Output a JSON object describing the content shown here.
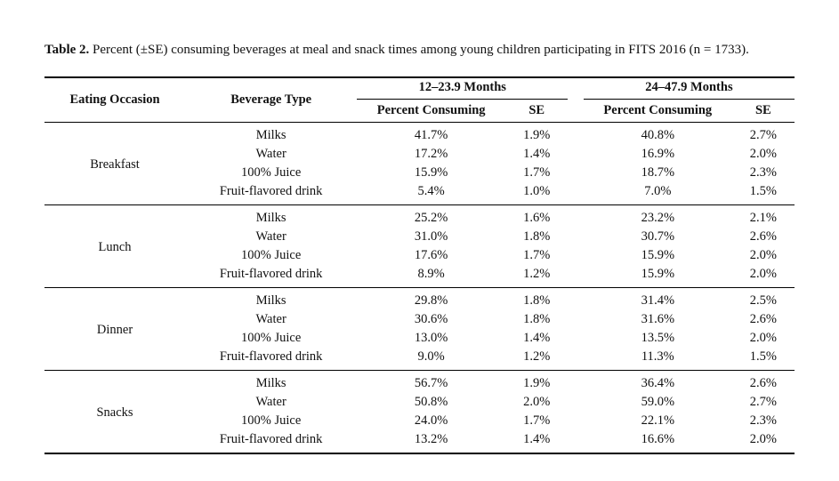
{
  "caption": {
    "label": "Table 2.",
    "text": " Percent (±SE) consuming beverages at meal and snack times among young children participating in FITS 2016 (n = 1733)."
  },
  "colors": {
    "text": "#111111",
    "background": "#ffffff",
    "rule": "#000000"
  },
  "typography": {
    "body_family": "Palatino Linotype, Book Antiqua, Palatino, Georgia, serif",
    "body_size_pt": 11,
    "table_size_pt": 10.5
  },
  "headers": {
    "eating_occasion": "Eating Occasion",
    "beverage_type": "Beverage Type",
    "age_groups": [
      "12–23.9 Months",
      "24–47.9 Months"
    ],
    "sub_percent": "Percent Consuming",
    "sub_se": "SE"
  },
  "column_widths_pct": [
    18,
    22,
    19,
    8,
    2,
    19,
    8
  ],
  "groups": [
    {
      "occasion": "Breakfast",
      "rows": [
        {
          "beverage": "Milks",
          "g1_pct": "41.7%",
          "g1_se": "1.9%",
          "g2_pct": "40.8%",
          "g2_se": "2.7%"
        },
        {
          "beverage": "Water",
          "g1_pct": "17.2%",
          "g1_se": "1.4%",
          "g2_pct": "16.9%",
          "g2_se": "2.0%"
        },
        {
          "beverage": "100% Juice",
          "g1_pct": "15.9%",
          "g1_se": "1.7%",
          "g2_pct": "18.7%",
          "g2_se": "2.3%"
        },
        {
          "beverage": "Fruit-flavored drink",
          "g1_pct": "5.4%",
          "g1_se": "1.0%",
          "g2_pct": "7.0%",
          "g2_se": "1.5%"
        }
      ]
    },
    {
      "occasion": "Lunch",
      "rows": [
        {
          "beverage": "Milks",
          "g1_pct": "25.2%",
          "g1_se": "1.6%",
          "g2_pct": "23.2%",
          "g2_se": "2.1%"
        },
        {
          "beverage": "Water",
          "g1_pct": "31.0%",
          "g1_se": "1.8%",
          "g2_pct": "30.7%",
          "g2_se": "2.6%"
        },
        {
          "beverage": "100% Juice",
          "g1_pct": "17.6%",
          "g1_se": "1.7%",
          "g2_pct": "15.9%",
          "g2_se": "2.0%"
        },
        {
          "beverage": "Fruit-flavored drink",
          "g1_pct": "8.9%",
          "g1_se": "1.2%",
          "g2_pct": "15.9%",
          "g2_se": "2.0%"
        }
      ]
    },
    {
      "occasion": "Dinner",
      "rows": [
        {
          "beverage": "Milks",
          "g1_pct": "29.8%",
          "g1_se": "1.8%",
          "g2_pct": "31.4%",
          "g2_se": "2.5%"
        },
        {
          "beverage": "Water",
          "g1_pct": "30.6%",
          "g1_se": "1.8%",
          "g2_pct": "31.6%",
          "g2_se": "2.6%"
        },
        {
          "beverage": "100% Juice",
          "g1_pct": "13.0%",
          "g1_se": "1.4%",
          "g2_pct": "13.5%",
          "g2_se": "2.0%"
        },
        {
          "beverage": "Fruit-flavored drink",
          "g1_pct": "9.0%",
          "g1_se": "1.2%",
          "g2_pct": "11.3%",
          "g2_se": "1.5%"
        }
      ]
    },
    {
      "occasion": "Snacks",
      "rows": [
        {
          "beverage": "Milks",
          "g1_pct": "56.7%",
          "g1_se": "1.9%",
          "g2_pct": "36.4%",
          "g2_se": "2.6%"
        },
        {
          "beverage": "Water",
          "g1_pct": "50.8%",
          "g1_se": "2.0%",
          "g2_pct": "59.0%",
          "g2_se": "2.7%"
        },
        {
          "beverage": "100% Juice",
          "g1_pct": "24.0%",
          "g1_se": "1.7%",
          "g2_pct": "22.1%",
          "g2_se": "2.3%"
        },
        {
          "beverage": "Fruit-flavored drink",
          "g1_pct": "13.2%",
          "g1_se": "1.4%",
          "g2_pct": "16.6%",
          "g2_se": "2.0%"
        }
      ]
    }
  ]
}
